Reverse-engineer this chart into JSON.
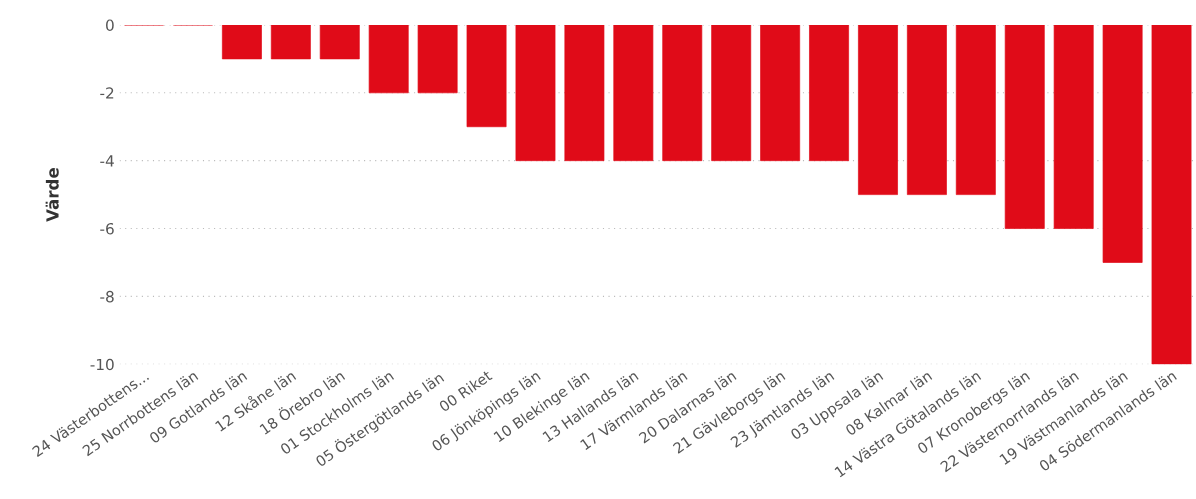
{
  "chart_data": {
    "type": "bar",
    "ylabel": "Värde",
    "categories": [
      "24 Västerbottens...",
      "25 Norrbottens län",
      "09 Gotlands län",
      "12 Skåne län",
      "18 Örebro län",
      "01 Stockholms län",
      "05 Östergötlands län",
      "00 Riket",
      "06 Jönköpings län",
      "10 Blekinge län",
      "13 Hallands län",
      "17 Värmlands län",
      "20 Dalarnas län",
      "21 Gävleborgs län",
      "23 Jämtlands län",
      "03 Uppsala län",
      "08 Kalmar län",
      "14 Västra Götalands län",
      "07 Kronobergs län",
      "22 Västernorrlands län",
      "19 Västmanlands län",
      "04 Södermanlands län"
    ],
    "values": [
      0,
      0,
      -1,
      -1,
      -1,
      -2,
      -2,
      -3,
      -4,
      -4,
      -4,
      -4,
      -4,
      -4,
      -4,
      -5,
      -5,
      -5,
      -6,
      -6,
      -7,
      -10
    ],
    "color": "#e00b18",
    "ylim": [
      -10,
      0
    ],
    "yticks": [
      0,
      -2,
      -4,
      -6,
      -8,
      -10
    ],
    "grid": "y"
  }
}
